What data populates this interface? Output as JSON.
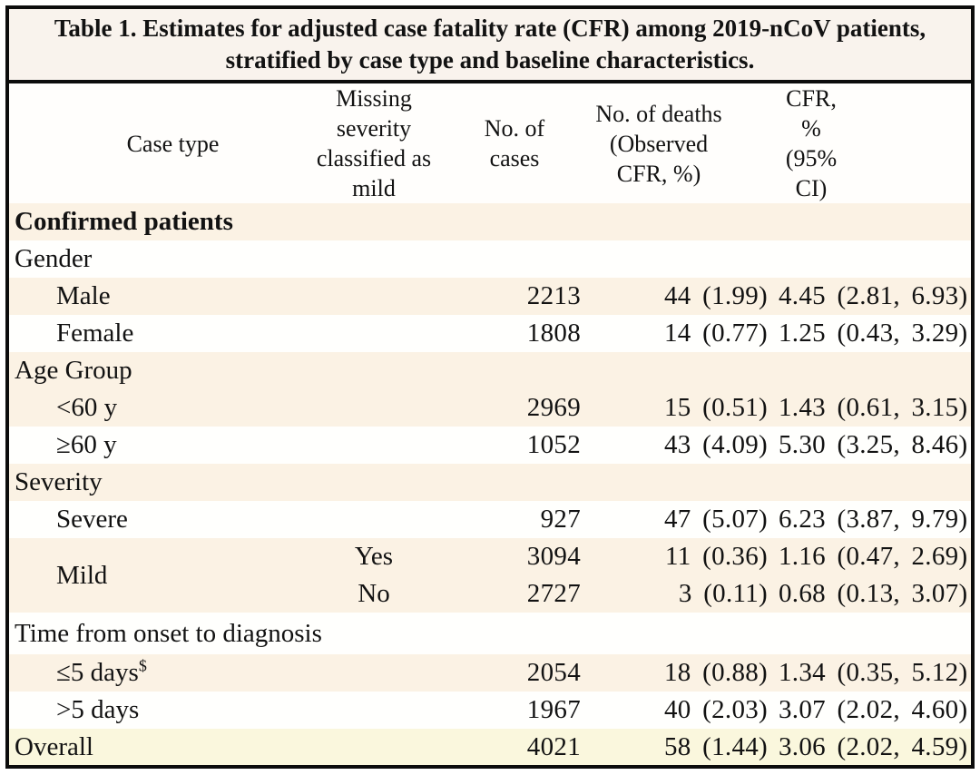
{
  "title": {
    "line1": "Table 1. Estimates for adjusted case fatality rate (CFR) among 2019-nCoV patients,",
    "line2": "stratified by case type and baseline characteristics."
  },
  "columns": {
    "case_type": "Case type",
    "missing_severity": "Missing\nseverity\nclassified as\nmild",
    "cases": "No. of cases",
    "deaths": "No. of deaths\n(Observed\nCFR, %)",
    "cfr": "CFR, %\n(95% CI)"
  },
  "colors": {
    "stripe_cream": "#fbf2e4",
    "stripe_white": "#fffffd",
    "overall_yellow": "#faf7dd",
    "title_background": "#f9f3ed",
    "border_black": "#0c0c0c"
  },
  "rows": [
    {
      "label": "Confirmed patients",
      "bold": true,
      "shade": "cream"
    },
    {
      "label": "Gender",
      "shade": "white"
    },
    {
      "label": "Male",
      "indent": true,
      "shade": "cream",
      "cases": "2213",
      "deaths": "44 (1.99)",
      "cfr": "4.45 (2.81, 6.93)"
    },
    {
      "label": "Female",
      "indent": true,
      "shade": "white",
      "cases": "1808",
      "deaths": "14 (0.77)",
      "cfr": "1.25 (0.43, 3.29)"
    },
    {
      "label": "Age Group",
      "shade": "cream"
    },
    {
      "label": "<60 y",
      "indent": true,
      "shade": "cream",
      "cases": "2969",
      "deaths": "15 (0.51)",
      "cfr": "1.43 (0.61, 3.15)"
    },
    {
      "label": "≥60 y",
      "indent": true,
      "shade": "white",
      "cases": "1052",
      "deaths": "43 (4.09)",
      "cfr": "5.30 (3.25, 8.46)"
    },
    {
      "label": "Severity",
      "shade": "cream"
    },
    {
      "label": "Severe",
      "indent": true,
      "shade": "white",
      "cases": "927",
      "deaths": "47 (5.07)",
      "cfr": "6.23 (3.87, 9.79)"
    },
    {
      "label": "Mild",
      "indent": true,
      "label_rowspan": 2,
      "shade": "cream",
      "missing": "Yes",
      "cases": "3094",
      "deaths": "11 (0.36)",
      "cfr": "1.16 (0.47, 2.69)"
    },
    {
      "no_label": true,
      "shade": "cream",
      "missing": "No",
      "cases": "2727",
      "deaths": "3 (0.11)",
      "cfr": "0.68 (0.13, 3.07)"
    },
    {
      "label": "Time from onset to diagnosis",
      "shade": "white",
      "tall": true
    },
    {
      "label": "≤5 days",
      "sup": "$",
      "indent": true,
      "shade": "cream",
      "cases": "2054",
      "deaths": "18 (0.88)",
      "cfr": "1.34 (0.35, 5.12)"
    },
    {
      "label": ">5 days",
      "indent": true,
      "shade": "white",
      "cases": "1967",
      "deaths": "40 (2.03)",
      "cfr": "3.07 (2.02, 4.60)"
    },
    {
      "label": "Overall",
      "shade": "yellow",
      "cases": "4021",
      "deaths": "58 (1.44)",
      "cfr": "3.06 (2.02, 4.59)"
    }
  ]
}
